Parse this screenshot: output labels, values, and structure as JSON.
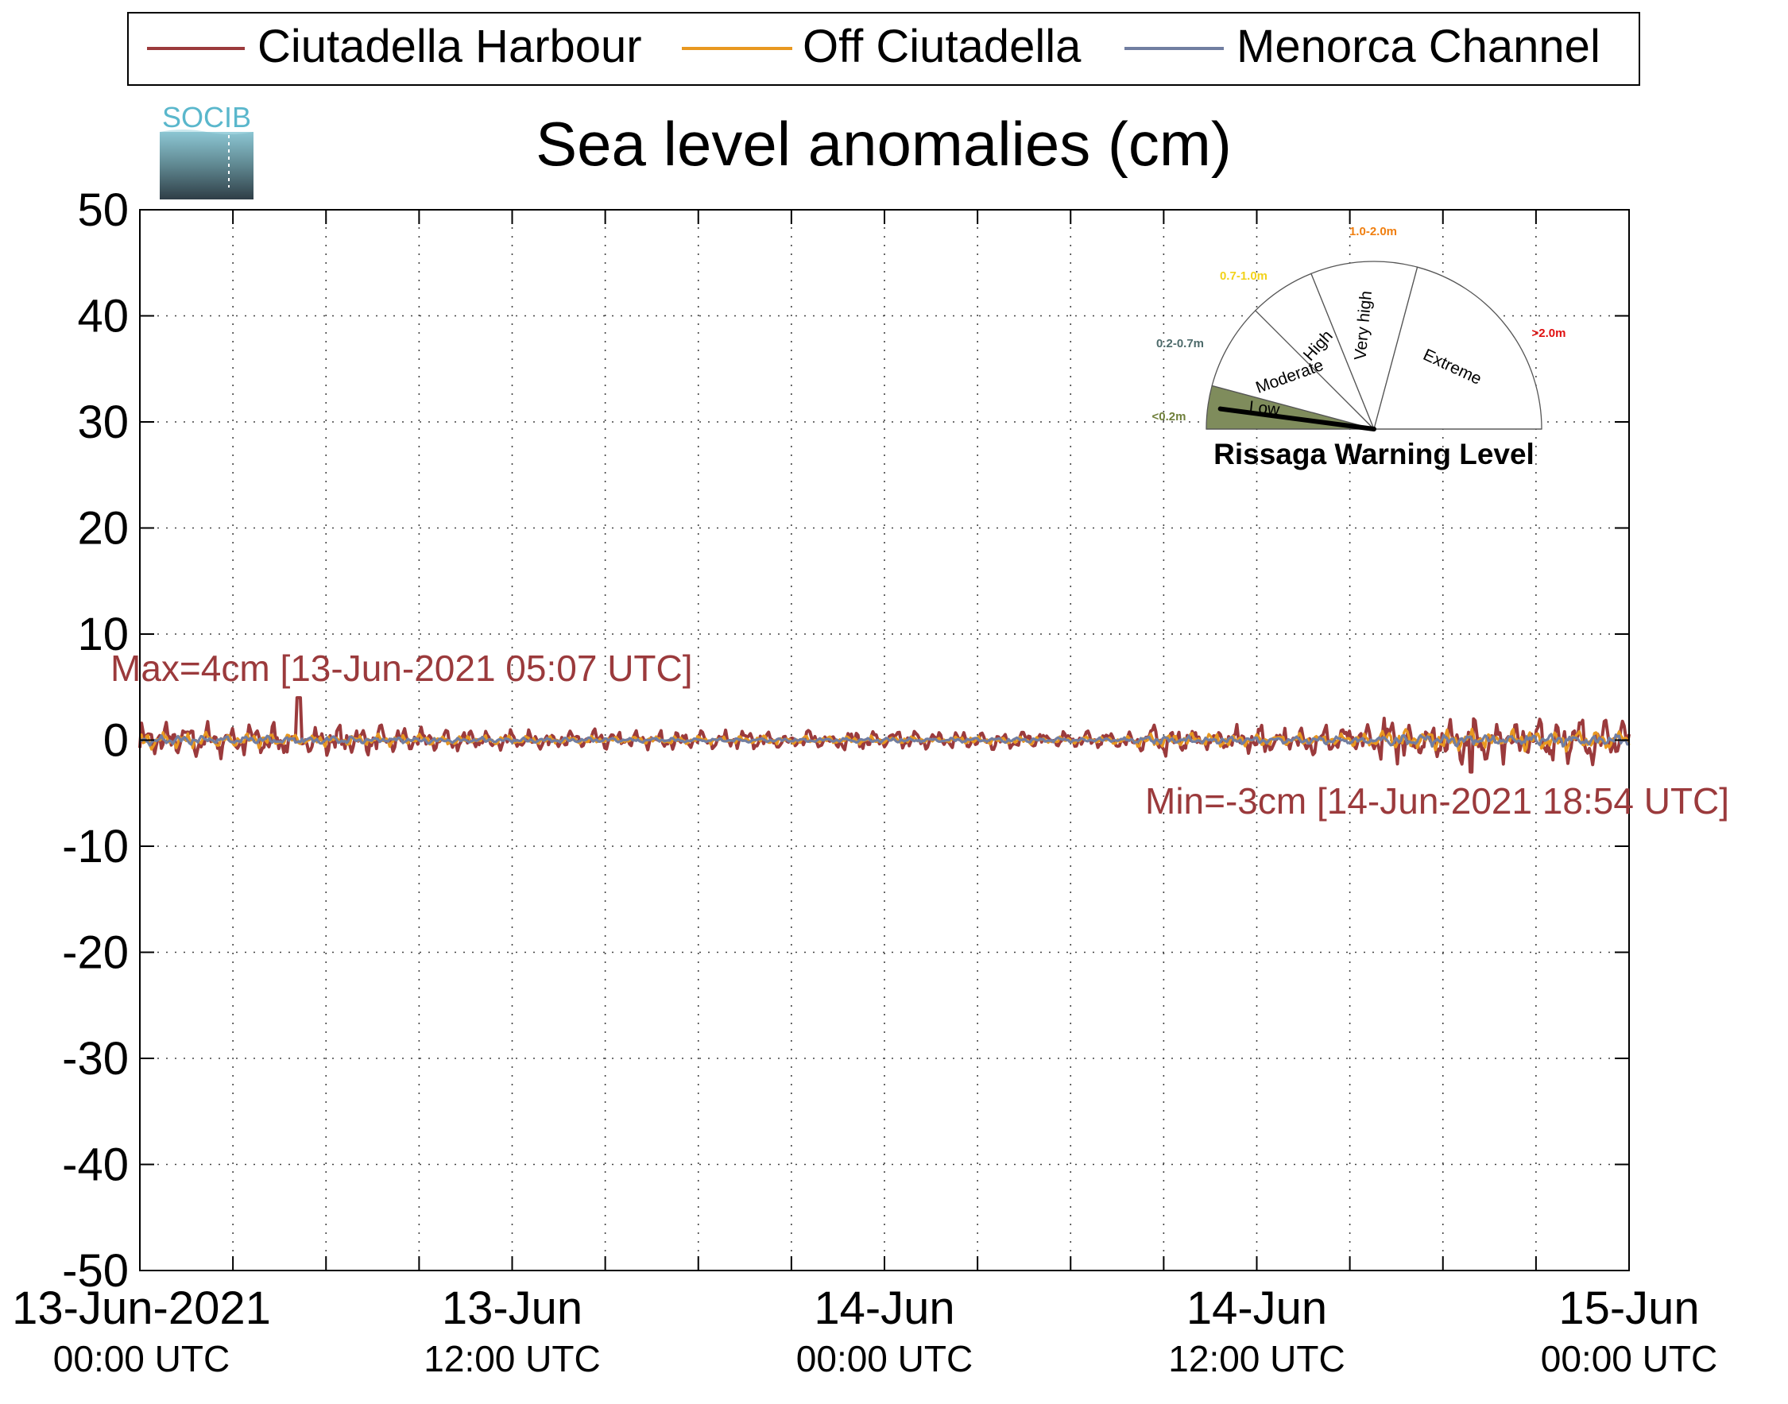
{
  "chart_data": {
    "type": "line",
    "title": "Sea level anomalies (cm)",
    "ylim": [
      -50,
      50
    ],
    "y_ticks": [
      "50",
      "40",
      "30",
      "20",
      "10",
      "0",
      "-10",
      "-20",
      "-30",
      "-40",
      "-50"
    ],
    "x_range_hours": [
      0,
      48
    ],
    "x_ticks": [
      {
        "hour": 0,
        "line1": "13-Jun-2021",
        "line2": "00:00 UTC"
      },
      {
        "hour": 12,
        "line1": "13-Jun",
        "line2": "12:00 UTC"
      },
      {
        "hour": 24,
        "line1": "14-Jun",
        "line2": "00:00 UTC"
      },
      {
        "hour": 36,
        "line1": "14-Jun",
        "line2": "12:00 UTC"
      },
      {
        "hour": 48,
        "line1": "15-Jun",
        "line2": "00:00 UTC"
      }
    ],
    "grid": true,
    "legend_position": "top",
    "series": [
      {
        "name": "Ciutadella Harbour",
        "color": "#9b3a3c",
        "base_amp": 1.2,
        "peak": {
          "x": 5.12,
          "y": 4
        },
        "trough": {
          "x": 42.9,
          "y": -3
        }
      },
      {
        "name": "Off Ciutadella",
        "color": "#e89820",
        "base_amp": 0.5
      },
      {
        "name": "Menorca Channel",
        "color": "#717ea1",
        "base_amp": 0.3
      }
    ],
    "annotations": {
      "max_label": "Max=4cm [13-Jun-2021 05:07 UTC]",
      "min_label": "Min=-3cm [14-Jun-2021 18:54 UTC]",
      "color": "#9b3a3c"
    },
    "logo_text": "SOCIB",
    "gauge": {
      "title": "Rissaga Warning Level",
      "current_level": "Low",
      "sectors": [
        {
          "label": "Low",
          "range": "<0.2m",
          "color": "#6f7f3a",
          "fill": "#7f8c5c"
        },
        {
          "label": "Moderate",
          "range": "0.2-0.7m",
          "color": "#4e6b6b"
        },
        {
          "label": "High",
          "range": "0.7-1.0m",
          "color": "#f2d21a"
        },
        {
          "label": "Very high",
          "range": "1.0-2.0m",
          "color": "#f07f10"
        },
        {
          "label": "Extreme",
          "range": ">2.0m",
          "color": "#e01010"
        }
      ]
    }
  }
}
